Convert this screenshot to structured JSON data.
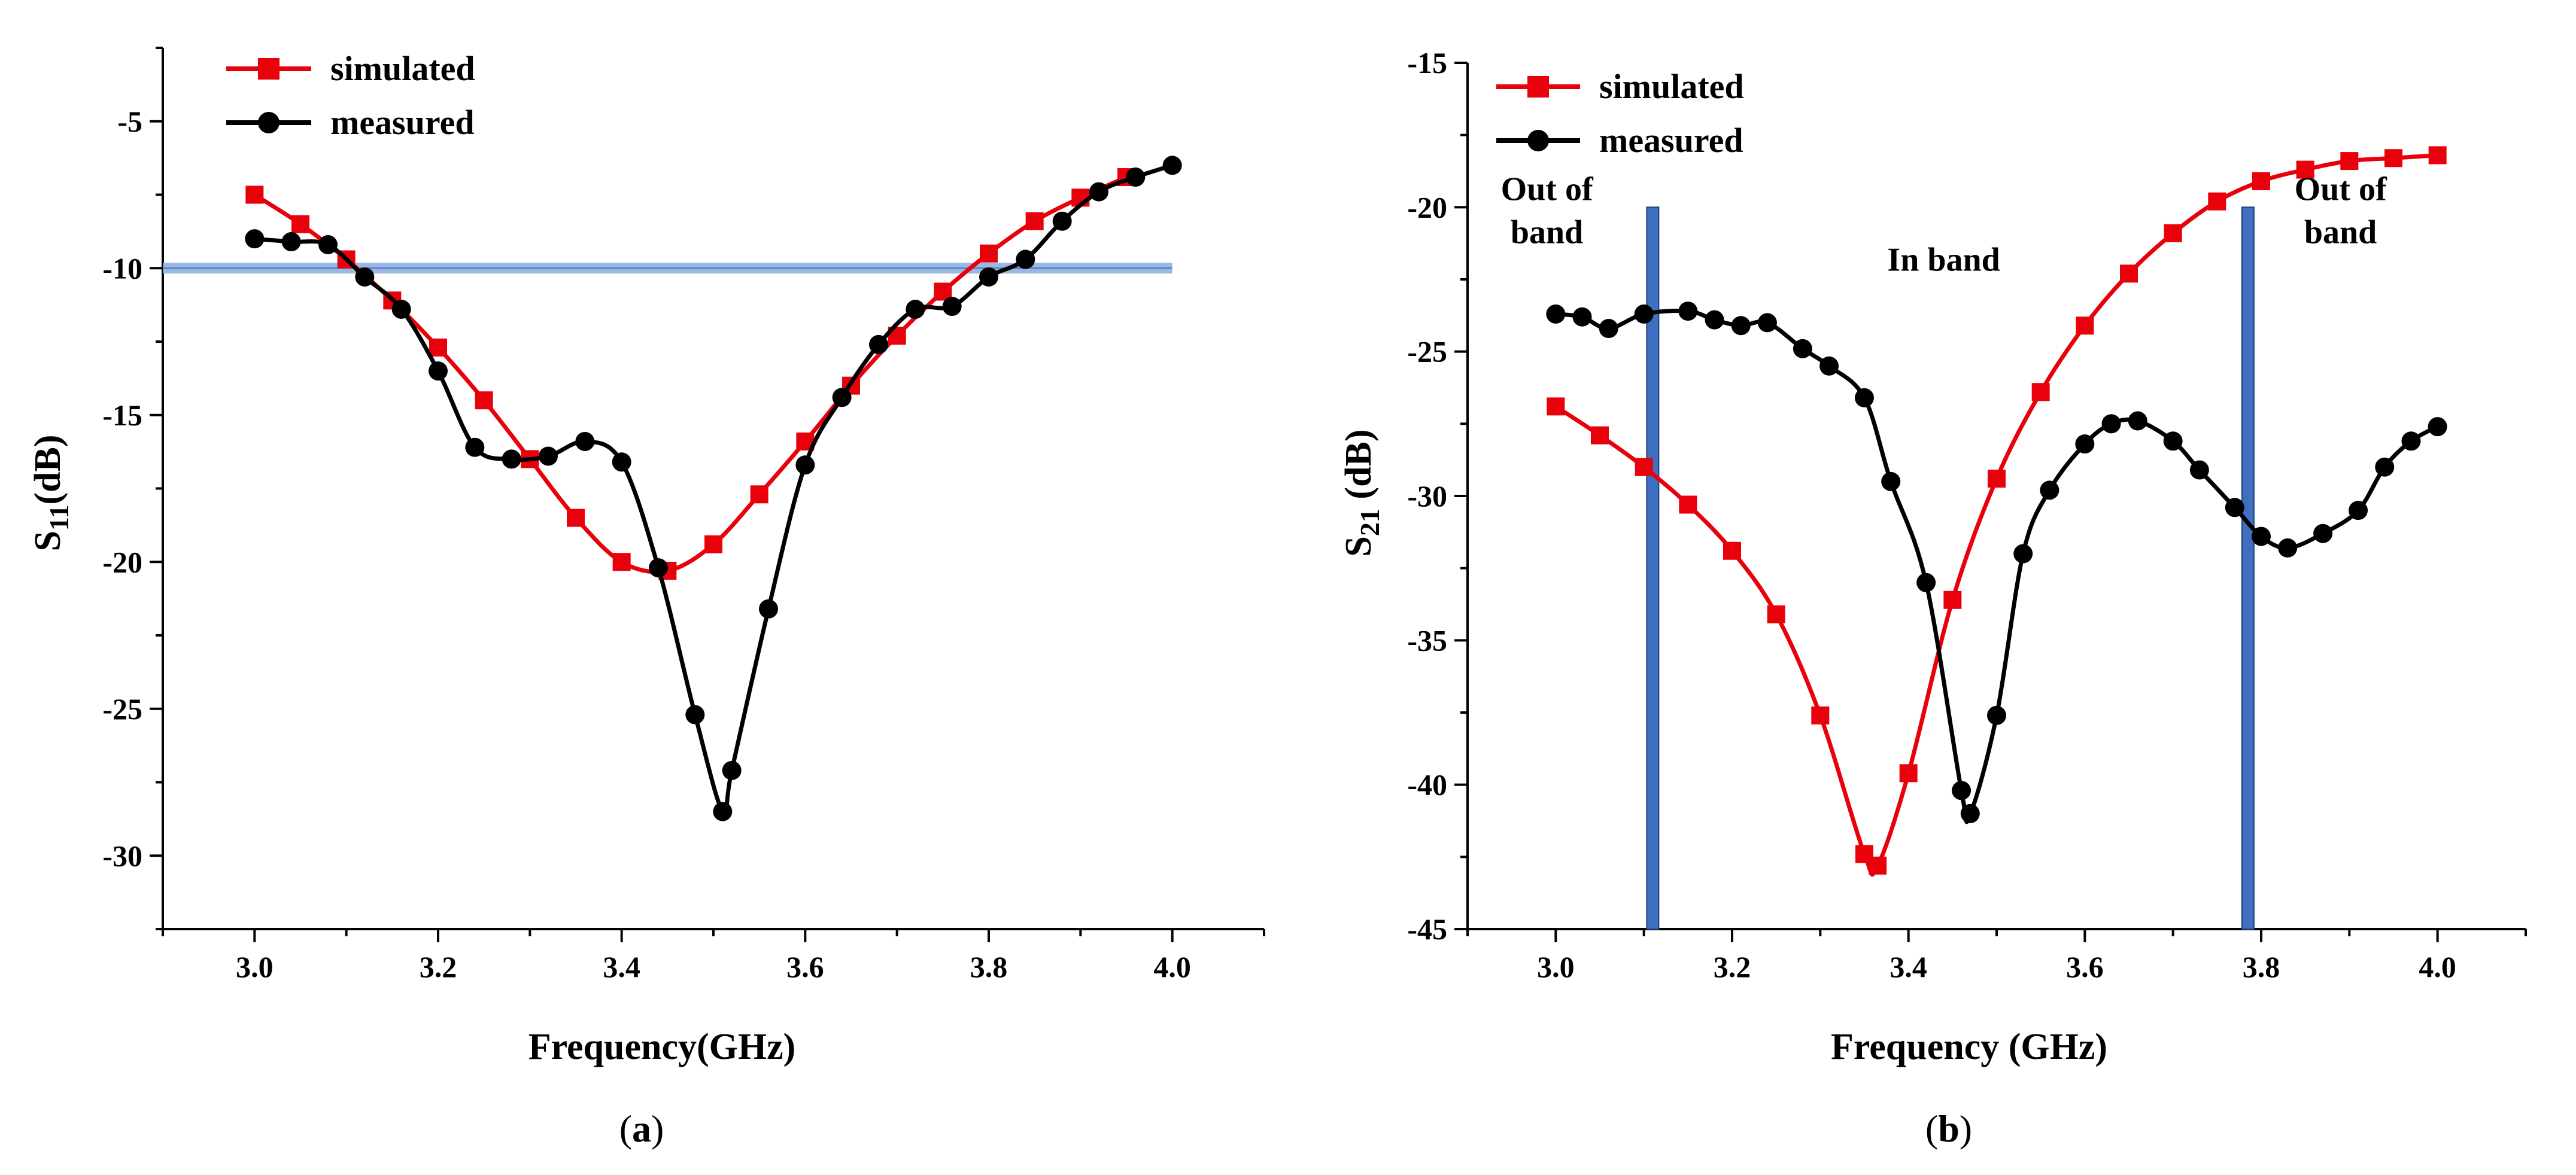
{
  "chart_data": [
    {
      "type": "line",
      "panel_label": "a",
      "xlabel": "Frequency(GHz)",
      "ylabel": "S11(dB)",
      "ylabel_main": "S",
      "ylabel_sub": "11",
      "ylabel_rest": "(dB)",
      "xlim": [
        2.9,
        4.1
      ],
      "ylim": [
        -32.5,
        -2.5
      ],
      "xticks": [
        3.0,
        3.2,
        3.4,
        3.6,
        3.8,
        4.0
      ],
      "xtick_labels": [
        "3.0",
        "3.2",
        "3.4",
        "3.6",
        "3.8",
        "4.0"
      ],
      "yticks": [
        -30,
        -25,
        -20,
        -15,
        -10,
        -5
      ],
      "ytick_labels": [
        "-30",
        "-25",
        "-20",
        "-15",
        "-10",
        "-5"
      ],
      "legend": "top-left",
      "grid": false,
      "reference_line": {
        "y": -10,
        "color": "#8fb0e0"
      },
      "series": [
        {
          "name": "simulated",
          "color": "#e8000b",
          "marker": "square",
          "x": [
            3.0,
            3.05,
            3.1,
            3.15,
            3.2,
            3.25,
            3.3,
            3.35,
            3.4,
            3.45,
            3.5,
            3.55,
            3.6,
            3.65,
            3.7,
            3.75,
            3.8,
            3.85,
            3.9,
            3.95
          ],
          "y": [
            -7.5,
            -8.5,
            -9.7,
            -11.1,
            -12.7,
            -14.5,
            -16.5,
            -18.5,
            -20.0,
            -20.3,
            -19.4,
            -17.7,
            -15.9,
            -14.0,
            -12.3,
            -10.8,
            -9.5,
            -8.4,
            -7.6,
            -6.9
          ]
        },
        {
          "name": "measured",
          "color": "#000000",
          "marker": "circle",
          "x": [
            3.0,
            3.04,
            3.08,
            3.12,
            3.16,
            3.2,
            3.24,
            3.28,
            3.32,
            3.36,
            3.4,
            3.44,
            3.48,
            3.51,
            3.52,
            3.56,
            3.6,
            3.64,
            3.68,
            3.72,
            3.76,
            3.8,
            3.84,
            3.88,
            3.92,
            3.96,
            4.0
          ],
          "y": [
            -9.0,
            -9.1,
            -9.2,
            -10.3,
            -11.4,
            -13.5,
            -16.1,
            -16.5,
            -16.4,
            -15.9,
            -16.6,
            -20.2,
            -25.2,
            -28.5,
            -27.1,
            -21.6,
            -16.7,
            -14.4,
            -12.6,
            -11.4,
            -11.3,
            -10.3,
            -9.7,
            -8.4,
            -7.4,
            -6.9,
            -6.5
          ]
        }
      ]
    },
    {
      "type": "line",
      "panel_label": "b",
      "xlabel": "Frequency (GHz)",
      "ylabel": "S21 (dB)",
      "ylabel_main": "S",
      "ylabel_sub": "21",
      "ylabel_rest": " (dB)",
      "xlim": [
        2.9,
        4.1
      ],
      "ylim": [
        -45,
        -15
      ],
      "xticks": [
        3.0,
        3.2,
        3.4,
        3.6,
        3.8,
        4.0
      ],
      "xtick_labels": [
        "3.0",
        "3.2",
        "3.4",
        "3.6",
        "3.8",
        "4.0"
      ],
      "yticks": [
        -45,
        -40,
        -35,
        -30,
        -25,
        -20,
        -15
      ],
      "ytick_labels": [
        "-45",
        "-40",
        "-35",
        "-30",
        "-25",
        "-20",
        "-15"
      ],
      "legend": "top-left",
      "grid": false,
      "band_lines": [
        {
          "x": 3.11,
          "color": "#3f6fbf"
        },
        {
          "x": 3.785,
          "color": "#3f6fbf"
        }
      ],
      "annotations": [
        {
          "lines": [
            "Out of",
            "band"
          ],
          "x": 2.99,
          "y": -21.2
        },
        {
          "lines": [
            "In band"
          ],
          "x": 3.44,
          "y": -22.2
        },
        {
          "lines": [
            "Out of",
            "band"
          ],
          "x": 3.89,
          "y": -21.2
        }
      ],
      "series": [
        {
          "name": "simulated",
          "color": "#e8000b",
          "marker": "square",
          "x": [
            3.0,
            3.05,
            3.1,
            3.15,
            3.2,
            3.25,
            3.3,
            3.35,
            3.365,
            3.4,
            3.45,
            3.5,
            3.55,
            3.6,
            3.65,
            3.7,
            3.75,
            3.8,
            3.85,
            3.9,
            3.95,
            4.0
          ],
          "y": [
            -26.9,
            -27.9,
            -29.0,
            -30.3,
            -31.9,
            -34.1,
            -37.6,
            -42.4,
            -42.8,
            -39.6,
            -33.6,
            -29.4,
            -26.4,
            -24.1,
            -22.3,
            -20.9,
            -19.8,
            -19.1,
            -18.7,
            -18.4,
            -18.3,
            -18.2
          ]
        },
        {
          "name": "measured",
          "color": "#000000",
          "marker": "circle",
          "x": [
            3.0,
            3.03,
            3.06,
            3.1,
            3.15,
            3.18,
            3.21,
            3.24,
            3.28,
            3.31,
            3.35,
            3.38,
            3.42,
            3.46,
            3.47,
            3.5,
            3.53,
            3.56,
            3.6,
            3.63,
            3.66,
            3.7,
            3.73,
            3.77,
            3.8,
            3.83,
            3.87,
            3.91,
            3.94,
            3.97,
            4.0
          ],
          "y": [
            -23.7,
            -23.8,
            -24.2,
            -23.7,
            -23.6,
            -23.9,
            -24.1,
            -24.0,
            -24.9,
            -25.5,
            -26.6,
            -29.5,
            -33.0,
            -40.2,
            -41.0,
            -37.6,
            -32.0,
            -29.8,
            -28.2,
            -27.5,
            -27.4,
            -28.1,
            -29.1,
            -30.4,
            -31.4,
            -31.8,
            -31.3,
            -30.5,
            -29.0,
            -28.1,
            -27.6
          ]
        }
      ]
    }
  ]
}
